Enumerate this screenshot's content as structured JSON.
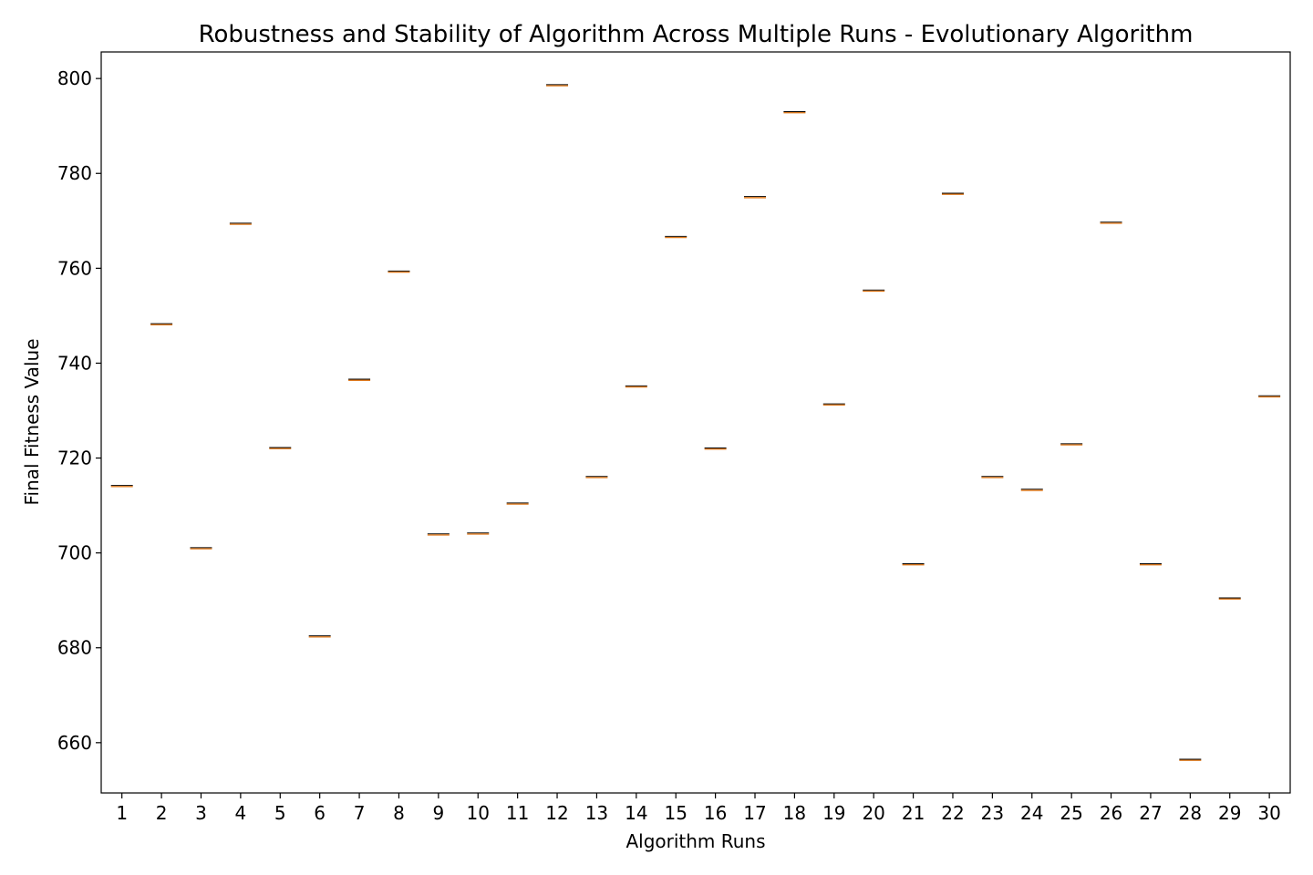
{
  "chart_data": {
    "type": "box",
    "title": "Robustness and Stability of Algorithm Across Multiple Runs - Evolutionary Algorithm",
    "xlabel": "Algorithm Runs",
    "ylabel": "Final Fitness Value",
    "categories": [
      "1",
      "2",
      "3",
      "4",
      "5",
      "6",
      "7",
      "8",
      "9",
      "10",
      "11",
      "12",
      "13",
      "14",
      "15",
      "16",
      "17",
      "18",
      "19",
      "20",
      "21",
      "22",
      "23",
      "24",
      "25",
      "26",
      "27",
      "28",
      "29",
      "30"
    ],
    "values": [
      714.1,
      748.2,
      701.0,
      769.4,
      722.1,
      682.4,
      736.5,
      759.3,
      703.9,
      704.1,
      710.4,
      798.6,
      716.0,
      735.1,
      766.6,
      722.0,
      775.0,
      792.9,
      731.3,
      755.3,
      697.6,
      775.7,
      716.0,
      713.3,
      722.9,
      769.6,
      697.6,
      656.4,
      690.4,
      733.0
    ],
    "ylim": [
      649.4,
      805.6
    ],
    "yticks": [
      660,
      680,
      700,
      720,
      740,
      760,
      780,
      800
    ],
    "grid": false,
    "colors": {
      "median": "#e07b1f",
      "box": "#000000",
      "axes": "#000000"
    }
  }
}
